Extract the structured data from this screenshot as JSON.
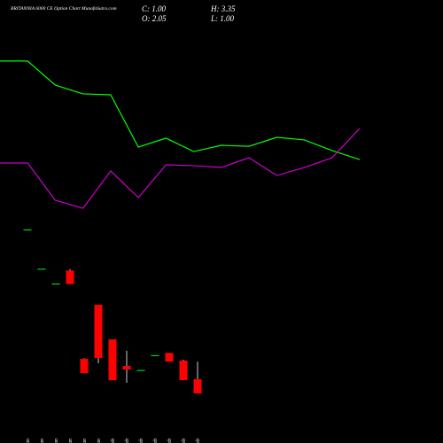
{
  "chart_data": {
    "type": "candlestick",
    "title": "BRITANNIA 6000 CE Option Chart MunafaSutra.com",
    "stats": [
      {
        "text": "C: 1.00"
      },
      {
        "text": "H: 3.35"
      },
      {
        "text": "O: 2.05"
      },
      {
        "text": "L: 1.00"
      }
    ],
    "categories": [
      "17 Jan",
      "22 Jan",
      "23 Jan",
      "27 Jan",
      "28 Jan",
      "30 Jan",
      "01 Feb",
      "02 Feb",
      "04 Feb",
      "06 Feb",
      "09 Feb",
      "10 Feb",
      "11 Feb"
    ],
    "open": [
      13.1,
      10.2,
      9.1,
      10.1,
      3.56,
      7.56,
      5.0,
      3.03,
      2.7,
      3.8,
      4.0,
      3.43,
      2.05
    ],
    "high": [
      13.1,
      10.2,
      9.1,
      10.2,
      3.6,
      7.56,
      5.0,
      4.15,
      2.7,
      3.8,
      4.0,
      3.5,
      3.35
    ],
    "low": [
      13.1,
      10.2,
      9.1,
      9.1,
      2.51,
      3.23,
      1.98,
      1.79,
      2.7,
      3.8,
      3.36,
      1.98,
      1.0
    ],
    "close": [
      13.1,
      10.2,
      9.1,
      9.1,
      2.51,
      3.62,
      1.98,
      2.77,
      2.7,
      3.8,
      3.36,
      1.98,
      1.0
    ],
    "up_color": "#00ff00",
    "down_color": "#ff0000",
    "ylim": [
      -2.67,
      30.13
    ],
    "lines": {
      "x": [
        0,
        1,
        2,
        3,
        4,
        5,
        6,
        7,
        8,
        9,
        10,
        11,
        12,
        13
      ],
      "xlim": [
        0,
        13
      ],
      "series": [
        {
          "color": "#00ff00",
          "values": [
            25.61,
            25.61,
            23.83,
            23.18,
            23.11,
            19.24,
            19.9,
            18.91,
            19.37,
            19.3,
            19.96,
            19.77,
            18.98,
            18.32
          ]
        },
        {
          "color": "#cc00cc",
          "values": [
            18.06,
            18.06,
            15.3,
            14.71,
            17.47,
            15.5,
            17.93,
            17.86,
            17.73,
            18.45,
            17.14,
            17.73,
            18.45,
            20.62
          ]
        }
      ]
    }
  }
}
